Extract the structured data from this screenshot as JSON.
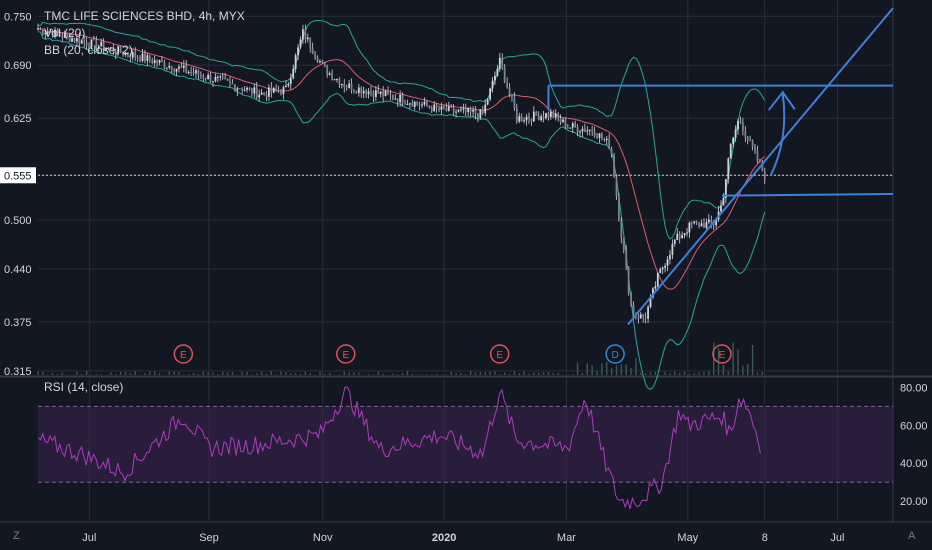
{
  "header": {
    "symbol": "TMC LIFE SCIENCES BHD, 4h, MYX",
    "vol_indicator": "Vol (20)",
    "bb_indicator": "BB (20, close, 2)"
  },
  "rsi_panel": {
    "label": "RSI (14, close)"
  },
  "corner": {
    "left": "Z",
    "right": "A"
  },
  "colors": {
    "background": "#131722",
    "grid": "#2a2e39",
    "candle": "#d1d4dc",
    "bollinger": "#26a69a",
    "bb_basis": "#e05a6a",
    "trendline": "#3d7fd9",
    "rsi_line": "#b03bc2",
    "rsi_band": "#3b2350",
    "earnings": "#e0515e",
    "dividend": "#2f8bd8"
  },
  "chart_data": [
    {
      "type": "candlestick",
      "title": "TMC LIFE SCIENCES BHD, 4h, MYX",
      "price_axis_ticks": [
        "0.750",
        "0.690",
        "0.625",
        "0.555",
        "0.500",
        "0.440",
        "0.375",
        "0.315"
      ],
      "ylim": [
        0.31,
        0.77
      ],
      "last_price": "0.555",
      "time_axis_ticks": [
        "Jul",
        "Sep",
        "Nov",
        "2020",
        "Mar",
        "May",
        "8",
        "Jul"
      ],
      "price_anchors": [
        [
          0.0,
          0.735
        ],
        [
          0.05,
          0.72
        ],
        [
          0.12,
          0.7
        ],
        [
          0.2,
          0.675
        ],
        [
          0.26,
          0.655
        ],
        [
          0.29,
          0.66
        ],
        [
          0.31,
          0.73
        ],
        [
          0.335,
          0.685
        ],
        [
          0.36,
          0.665
        ],
        [
          0.42,
          0.65
        ],
        [
          0.47,
          0.635
        ],
        [
          0.52,
          0.63
        ],
        [
          0.54,
          0.695
        ],
        [
          0.56,
          0.625
        ],
        [
          0.6,
          0.63
        ],
        [
          0.62,
          0.615
        ],
        [
          0.65,
          0.61
        ],
        [
          0.67,
          0.59
        ],
        [
          0.68,
          0.5
        ],
        [
          0.695,
          0.385
        ],
        [
          0.71,
          0.38
        ],
        [
          0.725,
          0.43
        ],
        [
          0.745,
          0.475
        ],
        [
          0.765,
          0.495
        ],
        [
          0.79,
          0.495
        ],
        [
          0.8,
          0.52
        ],
        [
          0.81,
          0.59
        ],
        [
          0.82,
          0.625
        ],
        [
          0.83,
          0.6
        ],
        [
          0.845,
          0.565
        ],
        [
          0.85,
          0.555
        ]
      ],
      "horizontal_levels": [
        0.665,
        0.53
      ],
      "events": [
        {
          "label": "E",
          "kind": "earnings",
          "pos": 0.17
        },
        {
          "label": "E",
          "kind": "earnings",
          "pos": 0.36
        },
        {
          "label": "E",
          "kind": "earnings",
          "pos": 0.54
        },
        {
          "label": "D",
          "kind": "dividend",
          "pos": 0.675
        },
        {
          "label": "E",
          "kind": "earnings",
          "pos": 0.8
        }
      ]
    },
    {
      "type": "line",
      "title": "RSI (14, close)",
      "y_axis_ticks": [
        "80.00",
        "60.00",
        "40.00",
        "20.00"
      ],
      "ylim": [
        10,
        85
      ],
      "upper_band": 70,
      "lower_band": 30,
      "rsi_anchors": [
        [
          0.0,
          52
        ],
        [
          0.05,
          45
        ],
        [
          0.1,
          35
        ],
        [
          0.14,
          52
        ],
        [
          0.17,
          65
        ],
        [
          0.2,
          48
        ],
        [
          0.26,
          50
        ],
        [
          0.33,
          55
        ],
        [
          0.36,
          78
        ],
        [
          0.4,
          47
        ],
        [
          0.47,
          55
        ],
        [
          0.52,
          45
        ],
        [
          0.54,
          78
        ],
        [
          0.56,
          52
        ],
        [
          0.62,
          48
        ],
        [
          0.64,
          75
        ],
        [
          0.665,
          38
        ],
        [
          0.68,
          20
        ],
        [
          0.7,
          20
        ],
        [
          0.73,
          30
        ],
        [
          0.75,
          68
        ],
        [
          0.76,
          60
        ],
        [
          0.8,
          65
        ],
        [
          0.81,
          55
        ],
        [
          0.82,
          75
        ],
        [
          0.83,
          70
        ],
        [
          0.845,
          50
        ]
      ]
    }
  ]
}
